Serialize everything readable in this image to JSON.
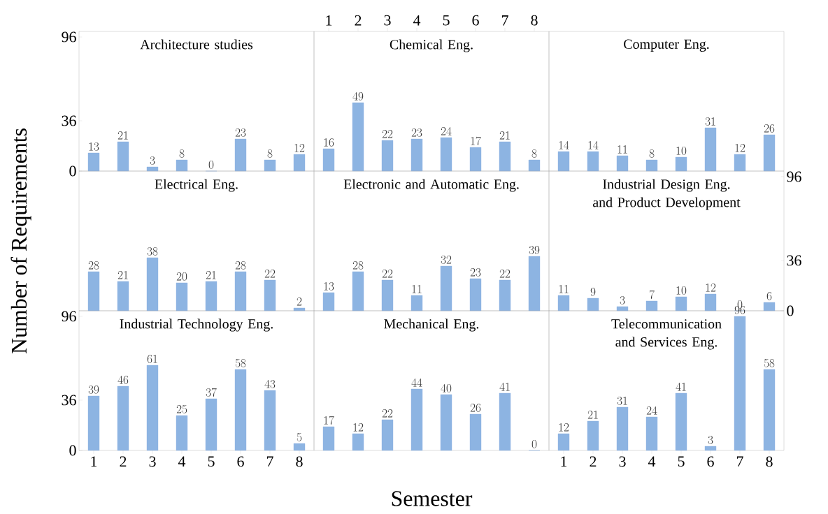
{
  "chart_data": [
    {
      "type": "bar",
      "title": "Architecture studies",
      "categories": [
        "1",
        "2",
        "3",
        "4",
        "5",
        "6",
        "7",
        "8"
      ],
      "values": [
        13,
        21,
        3,
        8,
        0,
        23,
        8,
        12
      ],
      "color": "#8db4e2",
      "ylim": [
        0,
        100
      ],
      "yticks": [
        0,
        36,
        96
      ],
      "data_labels": true,
      "tick_labels": "y"
    },
    {
      "type": "bar",
      "title": "Chemical Eng.",
      "categories": [
        "1",
        "2",
        "3",
        "4",
        "5",
        "6",
        "7",
        "8"
      ],
      "values": [
        16,
        49,
        22,
        23,
        24,
        17,
        21,
        8
      ],
      "color": "#8db4e2",
      "ylim": [
        0,
        100
      ],
      "data_labels": true,
      "tick_labels": "x"
    },
    {
      "type": "bar",
      "title": "Computer Eng.",
      "categories": [
        "1",
        "2",
        "3",
        "4",
        "5",
        "6",
        "7",
        "8"
      ],
      "values": [
        14,
        14,
        11,
        8,
        10,
        31,
        12,
        26
      ],
      "color": "#8db4e2",
      "ylim": [
        0,
        100
      ],
      "data_labels": true,
      "tick_labels": false
    },
    {
      "type": "bar",
      "title": "Electrical Eng.",
      "ylabel": "Number of Requirements",
      "categories": [
        "1",
        "2",
        "3",
        "4",
        "5",
        "6",
        "7",
        "8"
      ],
      "values": [
        28,
        21,
        38,
        20,
        21,
        28,
        22,
        2
      ],
      "color": "#8db4e2",
      "ylim": [
        0,
        100
      ],
      "data_labels": true,
      "tick_labels": false
    },
    {
      "type": "bar",
      "title": "Electronic and Automatic Eng.",
      "categories": [
        "1",
        "2",
        "3",
        "4",
        "5",
        "6",
        "7",
        "8"
      ],
      "values": [
        13,
        28,
        22,
        11,
        32,
        23,
        22,
        39
      ],
      "color": "#8db4e2",
      "ylim": [
        0,
        100
      ],
      "data_labels": true,
      "tick_labels": false
    },
    {
      "type": "bar",
      "title": "Industrial Design Eng. and Product Development",
      "categories": [
        "1",
        "2",
        "3",
        "4",
        "5",
        "6",
        "7",
        "8"
      ],
      "values": [
        11,
        9,
        3,
        7,
        10,
        12,
        0,
        6
      ],
      "color": "#8db4e2",
      "ylim": [
        0,
        100
      ],
      "yticks": [
        0,
        36,
        96
      ],
      "data_labels": true,
      "tick_labels": "y"
    },
    {
      "type": "bar",
      "title": "Industrial Technology Eng.",
      "categories": [
        "1",
        "2",
        "3",
        "4",
        "5",
        "6",
        "7",
        "8"
      ],
      "values": [
        39,
        46,
        61,
        25,
        37,
        58,
        43,
        5
      ],
      "color": "#8db4e2",
      "ylim": [
        0,
        100
      ],
      "yticks": [
        0,
        36,
        96
      ],
      "data_labels": true
    },
    {
      "type": "bar",
      "title": "Mechanical Eng.",
      "xlabel": "Semester",
      "categories": [
        "1",
        "2",
        "3",
        "4",
        "5",
        "6",
        "7",
        "8"
      ],
      "values": [
        17,
        12,
        22,
        44,
        40,
        26,
        41,
        0
      ],
      "color": "#8db4e2",
      "ylim": [
        0,
        100
      ],
      "data_labels": true,
      "tick_labels": false
    },
    {
      "type": "bar",
      "title": "Telecommunication and Services Eng.",
      "categories": [
        "1",
        "2",
        "3",
        "4",
        "5",
        "6",
        "7",
        "8"
      ],
      "values": [
        12,
        21,
        31,
        24,
        41,
        3,
        96,
        58
      ],
      "color": "#8db4e2",
      "ylim": [
        0,
        100
      ],
      "data_labels": true,
      "tick_labels": "x"
    }
  ]
}
